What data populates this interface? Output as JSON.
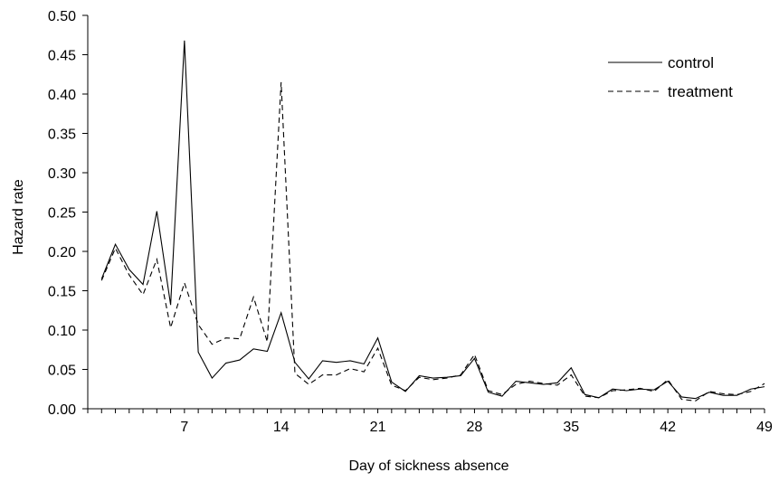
{
  "chart_data": {
    "type": "line",
    "xlabel": "Day of sickness absence",
    "ylabel": "Hazard rate",
    "xlim": [
      0,
      49
    ],
    "ylim": [
      0,
      0.5
    ],
    "x_ticks": [
      7,
      14,
      21,
      28,
      35,
      42,
      49
    ],
    "x_tick_labels": [
      "7",
      "14",
      "21",
      "28",
      "35",
      "42",
      "49"
    ],
    "y_ticks": [
      0,
      0.05,
      0.1,
      0.15,
      0.2,
      0.25,
      0.3,
      0.35,
      0.4,
      0.45,
      0.5
    ],
    "y_tick_labels": [
      "0.00",
      "0.05",
      "0.10",
      "0.15",
      "0.20",
      "0.25",
      "0.30",
      "0.35",
      "0.40",
      "0.45",
      "0.50"
    ],
    "grid": false,
    "legend_position": "top-right",
    "x": [
      1,
      2,
      3,
      4,
      5,
      6,
      7,
      8,
      9,
      10,
      11,
      12,
      13,
      14,
      15,
      16,
      17,
      18,
      19,
      20,
      21,
      22,
      23,
      24,
      25,
      26,
      27,
      28,
      29,
      30,
      31,
      32,
      33,
      34,
      35,
      36,
      37,
      38,
      39,
      40,
      41,
      42,
      43,
      44,
      45,
      46,
      47,
      48,
      49
    ],
    "series": [
      {
        "name": "control",
        "style": "solid",
        "values": [
          0.165,
          0.209,
          0.177,
          0.158,
          0.251,
          0.132,
          0.468,
          0.072,
          0.039,
          0.058,
          0.062,
          0.076,
          0.073,
          0.122,
          0.059,
          0.038,
          0.061,
          0.059,
          0.061,
          0.057,
          0.09,
          0.034,
          0.022,
          0.042,
          0.039,
          0.04,
          0.042,
          0.064,
          0.021,
          0.016,
          0.035,
          0.033,
          0.031,
          0.033,
          0.052,
          0.018,
          0.014,
          0.025,
          0.023,
          0.025,
          0.024,
          0.035,
          0.015,
          0.013,
          0.021,
          0.017,
          0.017,
          0.025,
          0.028
        ]
      },
      {
        "name": "treatment",
        "style": "dashed",
        "values": [
          0.163,
          0.204,
          0.17,
          0.145,
          0.19,
          0.103,
          0.16,
          0.107,
          0.082,
          0.09,
          0.089,
          0.142,
          0.085,
          0.415,
          0.045,
          0.031,
          0.043,
          0.043,
          0.051,
          0.047,
          0.077,
          0.03,
          0.023,
          0.04,
          0.037,
          0.039,
          0.043,
          0.069,
          0.023,
          0.018,
          0.031,
          0.035,
          0.032,
          0.03,
          0.043,
          0.016,
          0.014,
          0.023,
          0.024,
          0.026,
          0.022,
          0.037,
          0.012,
          0.01,
          0.022,
          0.019,
          0.018,
          0.022,
          0.032
        ]
      }
    ]
  }
}
